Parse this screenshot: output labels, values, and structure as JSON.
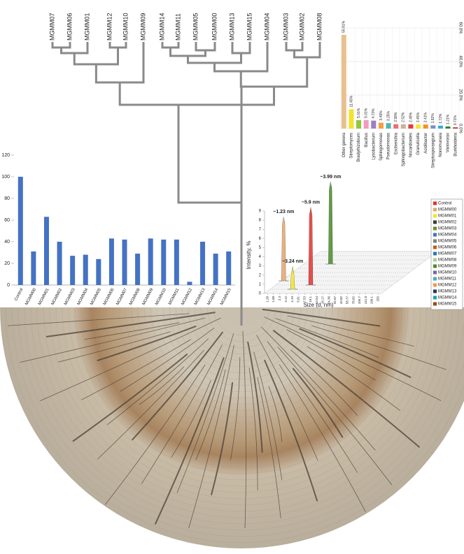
{
  "dendrogram": {
    "leaves": [
      "MGMM07",
      "MGMM06",
      "MGMM01",
      "MGMM12",
      "MGMM10",
      "MGMM09",
      "MGMM14",
      "MGMM11",
      "MGMM05",
      "MGMM00",
      "MGMM13",
      "MGMM15",
      "MGMM04",
      "MGMM03",
      "MGMM02",
      "MGMM08"
    ]
  },
  "chart_data": [
    {
      "type": "bar",
      "categories": [
        "Control",
        "MGMM00",
        "MGMM01",
        "MGMM02",
        "MGMM03",
        "MGMM04",
        "MGMM05",
        "MGMM06",
        "MGMM07",
        "MGMM08",
        "MGMM09",
        "MGMM10",
        "MGMM11",
        "MGMM12",
        "MGMM13",
        "MGMM14",
        "MGMM15"
      ],
      "values": [
        100,
        31,
        63,
        40,
        27,
        28,
        24,
        43,
        42,
        29,
        43,
        42,
        42,
        3,
        40,
        29,
        31
      ],
      "color": "#4472c4",
      "ylim": [
        0,
        120
      ],
      "yticks": [
        0,
        20,
        40,
        60,
        80,
        100,
        120
      ]
    },
    {
      "type": "bar",
      "categories": [
        "Other genera",
        "Streptomyces",
        "Bradyrhizobium",
        "Bacillus",
        "Lysobacterium",
        "Sphingomonas",
        "Pseudomonas",
        "Escherichia",
        "Sphingobacterium",
        "Nocardioides",
        "Granulicella",
        "Acidibacter",
        "Streptosporangium",
        "Nonomuraea",
        "Variovorax",
        "Burkholderia"
      ],
      "values": [
        55.91,
        11.45,
        5.01,
        5.01,
        4.73,
        3.49,
        3.25,
        2.58,
        2.52,
        2.49,
        2.45,
        2.41,
        1.92,
        1.72,
        1.21,
        0.71
      ],
      "value_labels": [
        "55.91%",
        "11.45%",
        "5.01%",
        "5.01%",
        "4.73%",
        "3.49%",
        "3.25%",
        "2.58%",
        "2.52%",
        "2.49%",
        "2.45%",
        "2.41%",
        "1.92%",
        "1.72%",
        "1.21%",
        "0.71%"
      ],
      "colors": [
        "#e8c08f",
        "#f2e32b",
        "#8dc63f",
        "#f49ac1",
        "#9b7fc1",
        "#f59d3f",
        "#4db8b3",
        "#f26d6d",
        "#c7b299",
        "#e63b3b",
        "#f7e43a",
        "#f7931e",
        "#7c8fc9",
        "#36a9e1",
        "#2e7d32",
        "#c1272d"
      ],
      "ylim": [
        0,
        60
      ],
      "yticks": [
        {
          "value": 0,
          "label": "0.0%"
        },
        {
          "value": 20,
          "label": "20.0%"
        },
        {
          "value": 40,
          "label": "40.0%"
        },
        {
          "value": 60,
          "label": "60.0%"
        }
      ],
      "grid": true
    },
    {
      "type": "bar3d",
      "y_label": "Intensity, %",
      "x_label": "Size (d, nm)",
      "ylim": [
        0,
        9
      ],
      "yticks": [
        0,
        1,
        2,
        3,
        4,
        5,
        6,
        7,
        8,
        9
      ],
      "xscale": "log",
      "xlim": [
        1.1,
        300
      ],
      "xticks": [
        1.28,
        1.68,
        2.3,
        3.12,
        4.19,
        5.61,
        7.53,
        10.1,
        13.54,
        18.17,
        24.36,
        32.67,
        43.82,
        58.77,
        78.82,
        105.7,
        141.8,
        190.1,
        255
      ],
      "peaks": [
        {
          "x": 1.23,
          "height": 7,
          "label": "~1.23 nm",
          "color": "#e8a56a"
        },
        {
          "x": 3.24,
          "height": 2.5,
          "label": "~3.24 nm",
          "color": "#f2e32b"
        },
        {
          "x": 5.9,
          "height": 8.5,
          "label": "~5.9 nm",
          "color": "#e0302b"
        },
        {
          "x": 3.99,
          "height": 9,
          "label": "~3.99 nm",
          "color": "#4a8c2a"
        }
      ],
      "legend": [
        {
          "name": "Control",
          "color": "#e0302b"
        },
        {
          "name": "MGMM00",
          "color": "#e8a56a"
        },
        {
          "name": "MGMM01",
          "color": "#f2e32b"
        },
        {
          "name": "MGMM02",
          "color": "#3a3a3a"
        },
        {
          "name": "MGMM03",
          "color": "#6b8e23"
        },
        {
          "name": "MGMM04",
          "color": "#4472c4"
        },
        {
          "name": "MGMM05",
          "color": "#7f7f7f"
        },
        {
          "name": "MGMM06",
          "color": "#c55a11"
        },
        {
          "name": "MGMM07",
          "color": "#2e75b6"
        },
        {
          "name": "MGMM08",
          "color": "#a9d18e"
        },
        {
          "name": "MGMM09",
          "color": "#4a8c2a"
        },
        {
          "name": "MGMM10",
          "color": "#8064a2"
        },
        {
          "name": "MGMM11",
          "color": "#4bacc6"
        },
        {
          "name": "MGMM12",
          "color": "#f79646"
        },
        {
          "name": "MGMM13",
          "color": "#1f3864"
        },
        {
          "name": "MGMM14",
          "color": "#17a2b8"
        },
        {
          "name": "MGMM15",
          "color": "#9e480e"
        }
      ]
    }
  ]
}
